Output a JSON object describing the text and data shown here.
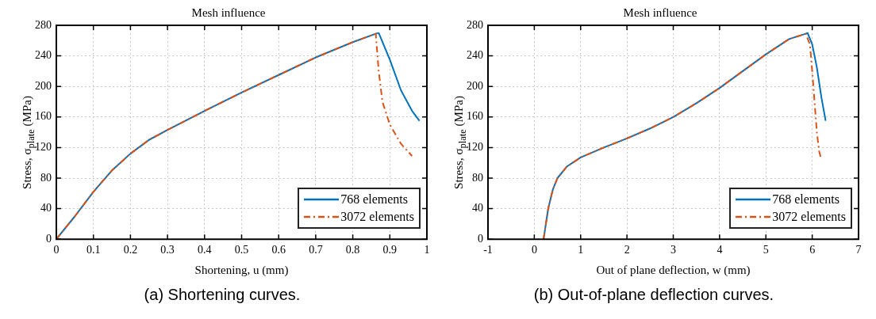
{
  "chart_data": [
    {
      "type": "line",
      "title": "Mesh influence",
      "xlabel": "Shortening, u (mm)",
      "ylabel": "Stress, σ$_{plate}$ (MPa)",
      "annotations": [
        "(a) Shortening curves."
      ],
      "xlim": [
        0,
        1
      ],
      "xticks": [
        0,
        0.1,
        0.2,
        0.3,
        0.4,
        0.5,
        0.6,
        0.7,
        0.8,
        0.9,
        1
      ],
      "ylim": [
        0,
        280
      ],
      "yticks": [
        0,
        40,
        80,
        120,
        160,
        200,
        240,
        280
      ],
      "grid": true,
      "legend": "bottom right",
      "marker": "none",
      "series": [
        {
          "name": "768 elements",
          "color": "#0072bd",
          "line_style": "solid",
          "x": [
            0,
            0.05,
            0.1,
            0.15,
            0.2,
            0.25,
            0.3,
            0.4,
            0.5,
            0.6,
            0.7,
            0.8,
            0.862,
            0.87,
            0.9,
            0.93,
            0.96,
            0.98
          ],
          "values": [
            0,
            30,
            62,
            90,
            112,
            130,
            143,
            168,
            192,
            215,
            238,
            258,
            269,
            270,
            235,
            195,
            168,
            155
          ]
        },
        {
          "name": "3072 elements",
          "color": "#d95319",
          "line_style": "dashdot",
          "x": [
            0,
            0.05,
            0.1,
            0.15,
            0.2,
            0.25,
            0.3,
            0.4,
            0.5,
            0.6,
            0.7,
            0.8,
            0.862,
            0.87,
            0.88,
            0.9,
            0.93,
            0.96
          ],
          "values": [
            0,
            30,
            62,
            90,
            112,
            130,
            143,
            168,
            192,
            215,
            238,
            258,
            269,
            220,
            180,
            150,
            125,
            109
          ]
        }
      ]
    },
    {
      "type": "line",
      "title": "Mesh influence",
      "xlabel": "Out of plane deflection, w (mm)",
      "ylabel": "Stress, σ$_{plate}$ (MPa)",
      "annotations": [
        "(b) Out-of-plane deflection curves."
      ],
      "xlim": [
        -1,
        7
      ],
      "xticks": [
        -1,
        0,
        1,
        2,
        3,
        4,
        5,
        6,
        7
      ],
      "ylim": [
        0,
        280
      ],
      "yticks": [
        0,
        40,
        80,
        120,
        160,
        200,
        240,
        280
      ],
      "grid": true,
      "legend": "bottom right",
      "marker": "none",
      "series": [
        {
          "name": "768 elements",
          "color": "#0072bd",
          "line_style": "solid",
          "x": [
            0.2,
            0.25,
            0.3,
            0.4,
            0.5,
            0.7,
            1,
            1.5,
            2,
            2.5,
            3,
            3.5,
            4,
            4.5,
            5,
            5.5,
            5.86,
            5.9,
            6,
            6.1,
            6.2,
            6.29
          ],
          "values": [
            0,
            20,
            40,
            65,
            80,
            95,
            107,
            120,
            132,
            145,
            160,
            178,
            198,
            220,
            242,
            262,
            269,
            270,
            255,
            225,
            185,
            155
          ]
        },
        {
          "name": "3072 elements",
          "color": "#d95319",
          "line_style": "dashdot",
          "x": [
            0.2,
            0.25,
            0.3,
            0.4,
            0.5,
            0.7,
            1,
            1.5,
            2,
            2.5,
            3,
            3.5,
            4,
            4.5,
            5,
            5.5,
            5.86,
            5.95,
            6,
            6.05,
            6.1,
            6.15,
            6.18
          ],
          "values": [
            0,
            20,
            40,
            65,
            80,
            95,
            107,
            120,
            132,
            145,
            160,
            178,
            198,
            220,
            242,
            262,
            269,
            255,
            220,
            180,
            140,
            115,
            108
          ]
        }
      ]
    }
  ]
}
